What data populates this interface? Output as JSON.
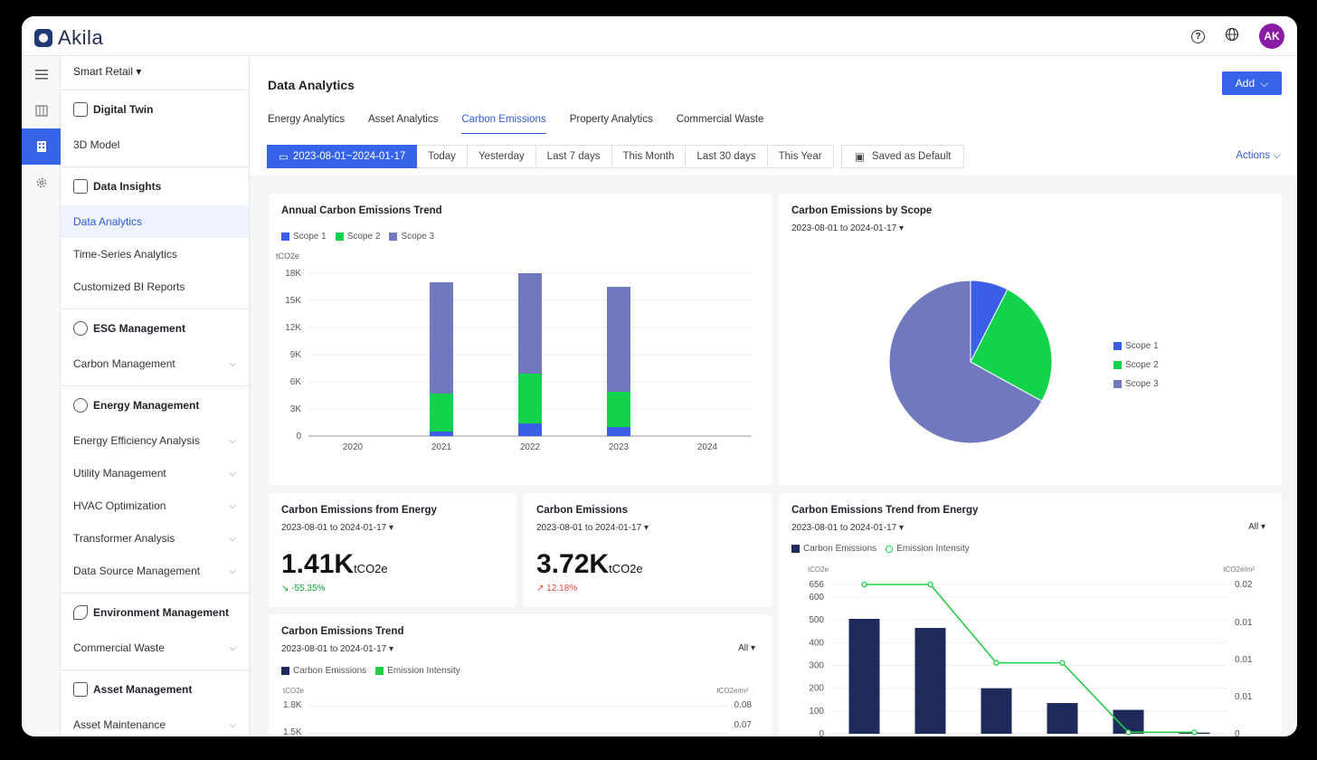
{
  "app": {
    "brand": "Akila",
    "avatar_initials": "AK",
    "help_icon": "help-circle-icon",
    "globe_icon": "globe-icon"
  },
  "sidebar": {
    "org": "Smart Retail",
    "groups": [
      {
        "title": "Digital Twin",
        "items": [
          {
            "label": "3D Model"
          }
        ]
      },
      {
        "title": "Data Insights",
        "items": [
          {
            "label": "Data Analytics"
          },
          {
            "label": "Time-Series Analytics"
          },
          {
            "label": "Customized BI Reports"
          }
        ]
      },
      {
        "title": "ESG Management",
        "items": [
          {
            "label": "Carbon Management"
          }
        ]
      },
      {
        "title": "Energy Management",
        "items": [
          {
            "label": "Energy Efficiency Analysis"
          },
          {
            "label": "Utility Management"
          },
          {
            "label": "HVAC Optimization"
          },
          {
            "label": "Transformer Analysis"
          },
          {
            "label": "Data Source Management"
          }
        ]
      },
      {
        "title": "Environment Management",
        "items": [
          {
            "label": "Commercial Waste"
          }
        ]
      },
      {
        "title": "Asset Management",
        "items": [
          {
            "label": "Asset Maintenance"
          }
        ]
      }
    ]
  },
  "header": {
    "title": "Data Analytics",
    "add_label": "Add",
    "tabs": [
      "Energy Analytics",
      "Asset Analytics",
      "Carbon Emissions",
      "Property Analytics",
      "Commercial Waste"
    ],
    "date_range": "2023-08-01~2024-01-17",
    "ranges": [
      "Today",
      "Yesterday",
      "Last 7 days",
      "This Month",
      "Last 30 days",
      "This Year"
    ],
    "saved_label": "Saved as Default",
    "actions_label": "Actions"
  },
  "colors": {
    "scope1": "#3b5ee6",
    "scope2": "#12d34b",
    "scope3": "#7078be",
    "navy": "#1e2a5a",
    "green": "#22cc44",
    "accent": "#3763e9"
  },
  "cards": {
    "annual": {
      "title": "Annual Carbon Emissions Trend",
      "unit": "tCO2e",
      "legend": [
        "Scope 1",
        "Scope 2",
        "Scope 3"
      ]
    },
    "scope": {
      "title": "Carbon Emissions by Scope",
      "date": "2023-08-01 to 2024-01-17",
      "legend": [
        "Scope 1",
        "Scope 2",
        "Scope 3"
      ]
    },
    "energy": {
      "title": "Carbon Emissions from Energy",
      "date": "2023-08-01 to 2024-01-17",
      "value": "1.41K",
      "unit": "tCO2e",
      "delta": "-55.35%"
    },
    "total": {
      "title": "Carbon Emissions",
      "date": "2023-08-01 to 2024-01-17",
      "value": "3.72K",
      "unit": "tCO2e",
      "delta": "12.18%"
    },
    "trend": {
      "title": "Carbon Emissions Trend",
      "date": "2023-08-01 to 2024-01-17",
      "filter": "All",
      "legend": [
        "Carbon Emissions",
        "Emission Intensity"
      ],
      "yleft_unit": "tCO2e",
      "yright_unit": "tCO2e/m²",
      "yleft_ticks": [
        "1.8K",
        "1.5K"
      ],
      "yright_ticks": [
        "0.08",
        "0.07"
      ]
    },
    "energy_trend": {
      "title": "Carbon Emissions Trend from Energy",
      "date": "2023-08-01 to 2024-01-17",
      "filter": "All",
      "legend": [
        "Carbon Emissions",
        "Emission Intensity"
      ],
      "yleft_unit": "tCO2e",
      "yright_unit": "tCO2e/m²"
    }
  },
  "chart_data": [
    {
      "type": "bar",
      "title": "Annual Carbon Emissions Trend",
      "ylabel": "tCO2e",
      "categories": [
        "2020",
        "2021",
        "2022",
        "2023",
        "2024"
      ],
      "yticks": [
        "0",
        "3K",
        "6K",
        "9K",
        "12K",
        "15K",
        "18K"
      ],
      "ylim": [
        0,
        18000
      ],
      "series": [
        {
          "name": "Scope 1",
          "values": [
            0,
            500,
            1400,
            1000,
            0
          ]
        },
        {
          "name": "Scope 2",
          "values": [
            0,
            4200,
            5500,
            3900,
            0
          ]
        },
        {
          "name": "Scope 3",
          "values": [
            0,
            12300,
            11100,
            11600,
            0
          ]
        }
      ]
    },
    {
      "type": "pie",
      "title": "Carbon Emissions by Scope",
      "categories": [
        "Scope 1",
        "Scope 2",
        "Scope 3"
      ],
      "values": [
        7.5,
        25.5,
        67.0
      ]
    },
    {
      "type": "bar",
      "title": "Carbon Emissions Trend from Energy",
      "yticks_left": [
        "0",
        "100",
        "200",
        "300",
        "400",
        "500",
        "600",
        "656"
      ],
      "yticks_right": [
        "0",
        "0.01",
        "0.01",
        "0.01",
        "0.02"
      ],
      "ylim": [
        0,
        656
      ],
      "series": [
        {
          "name": "Carbon Emissions",
          "values": [
            505,
            465,
            200,
            135,
            105,
            5
          ]
        },
        {
          "name": "Emission Intensity",
          "values": [
            0.02,
            0.02,
            0.0095,
            0.0095,
            0.0002,
            0.0002
          ]
        }
      ],
      "y2lim": [
        0,
        0.02
      ]
    }
  ]
}
